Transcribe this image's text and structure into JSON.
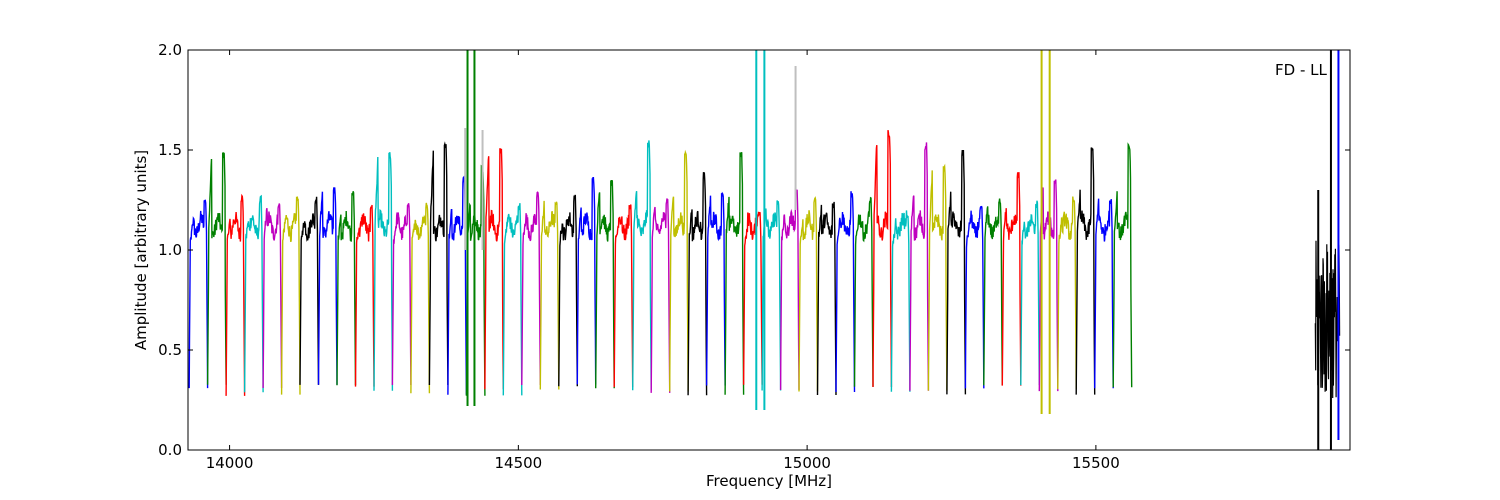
{
  "chart_data": {
    "type": "line",
    "annotation": "FD - LL",
    "xlabel": "Frequency [MHz]",
    "ylabel": "Amplitude [arbitrary units]",
    "xlim": [
      13928,
      15940
    ],
    "ylim": [
      0.0,
      2.0
    ],
    "xticks": [
      14000,
      14500,
      15000,
      15500
    ],
    "xtick_labels": [
      "14000",
      "14500",
      "15000",
      "15500"
    ],
    "yticks": [
      0.0,
      0.5,
      1.0,
      1.5,
      2.0
    ],
    "ytick_labels": [
      "0.0",
      "0.5",
      "1.0",
      "1.5",
      "2.0"
    ],
    "grid": false,
    "legend": "none",
    "band_width_mhz": 32,
    "color_cycle": [
      "#0000ff",
      "#008000",
      "#ff0000",
      "#00bfbf",
      "#bf00bf",
      "#bfbf00",
      "#000000"
    ],
    "first_band_start_mhz": 13930,
    "band_peak_levels": [
      1.24,
      1.47,
      1.26,
      1.25,
      1.22,
      1.26,
      1.25,
      1.3,
      1.29,
      1.22,
      1.47,
      1.23,
      1.22,
      1.52,
      1.35,
      1.4,
      1.5,
      1.22,
      1.27,
      1.24,
      1.26,
      1.35,
      1.33,
      1.22,
      1.53,
      1.25,
      1.49,
      1.37,
      1.27,
      1.48,
      1.19,
      1.23,
      1.3,
      1.25,
      1.23,
      1.28,
      1.25,
      1.58,
      1.18,
      1.52,
      1.4,
      1.48,
      1.2,
      1.25,
      1.37,
      1.23,
      1.35,
      1.25,
      1.5,
      1.25,
      1.51
    ],
    "spikes": [
      {
        "x": 14412,
        "y_top": 2.0,
        "y_bottom": 0.22,
        "color": "#008000"
      },
      {
        "x": 14424,
        "y_top": 2.0,
        "y_bottom": 0.22,
        "color": "#008000"
      },
      {
        "x": 14408,
        "y_top": 1.61,
        "y_bottom": 1.0,
        "color": "#bfbfbf"
      },
      {
        "x": 14438,
        "y_top": 1.6,
        "y_bottom": 1.0,
        "color": "#bfbfbf"
      },
      {
        "x": 14912,
        "y_top": 2.0,
        "y_bottom": 0.2,
        "color": "#00bfbf"
      },
      {
        "x": 14926,
        "y_top": 2.0,
        "y_bottom": 0.2,
        "color": "#00bfbf"
      },
      {
        "x": 14980,
        "y_top": 1.92,
        "y_bottom": 1.2,
        "color": "#bfbfbf"
      },
      {
        "x": 15406,
        "y_top": 2.0,
        "y_bottom": 0.18,
        "color": "#bfbf00"
      },
      {
        "x": 15420,
        "y_top": 2.0,
        "y_bottom": 0.18,
        "color": "#bfbf00"
      },
      {
        "x": 15907,
        "y_top": 2.0,
        "y_bottom": 0.0,
        "color": "#000000"
      },
      {
        "x": 15920,
        "y_top": 2.0,
        "y_bottom": 0.05,
        "color": "#0000ff"
      },
      {
        "x": 15885,
        "y_top": 1.3,
        "y_bottom": 0.0,
        "color": "#000000"
      }
    ]
  }
}
